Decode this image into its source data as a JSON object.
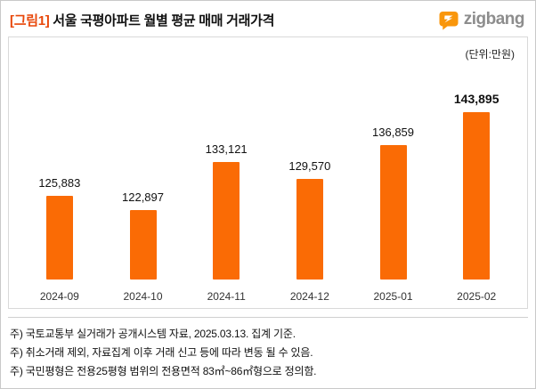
{
  "header": {
    "title_tag": "[그림1]",
    "title_rest": " 서울 국평아파트 월별 평균 매매 거래가격",
    "logo_text": "zigbang"
  },
  "chart": {
    "unit_label": "(단위:만원)"
  },
  "chart_data": {
    "type": "bar",
    "title": "[그림1] 서울 국평아파트 월별 평균 매매 거래가격",
    "unit": "만원",
    "categories": [
      "2024-09",
      "2024-10",
      "2024-11",
      "2024-12",
      "2025-01",
      "2025-02"
    ],
    "values": [
      125883,
      122897,
      133121,
      129570,
      136859,
      143895
    ],
    "ylim": [
      108000,
      150000
    ],
    "grid": false,
    "legend": "none",
    "bar_color": "#fa6b05",
    "highlight_last": true
  },
  "notes": [
    "주) 국토교통부 실거래가 공개시스템 자료, 2025.03.13. 집계 기준.",
    "주) 취소거래 제외, 자료집계 이후 거래 신고 등에 따라 변동 될 수 있음.",
    "주) 국민평형은 전용25평형 범위의 전용면적 83㎡~86㎡형으로 정의함."
  ],
  "colors": {
    "bar_orange": "#fa6b05",
    "title_tag_orange": "#e8470a",
    "logo_bubble_orange": "#f9960b",
    "logo_text_gray": "#8d8d8d"
  }
}
